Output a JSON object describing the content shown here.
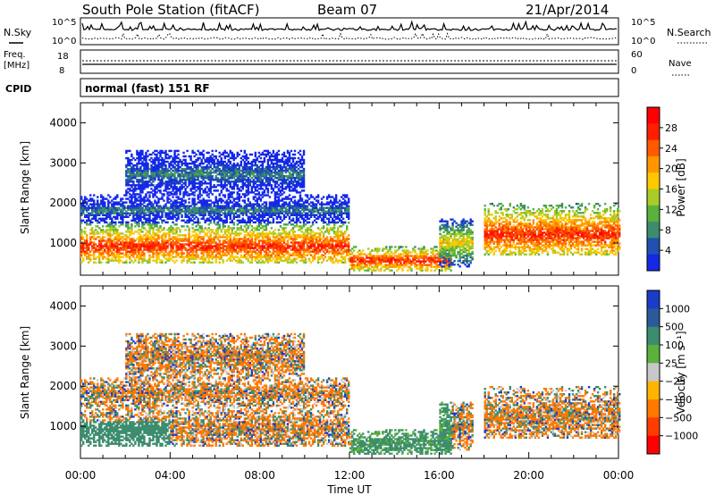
{
  "header": {
    "station": "South Pole Station (fitACF)",
    "beam": "Beam 07",
    "date": "21/Apr/2014"
  },
  "top_panels": {
    "nsky_label": "N.Sky",
    "nsearch_label": "N.Search",
    "pow_high": "10^5",
    "pow_low": "10^0",
    "freq_label_1": "Freq.",
    "freq_label_2": "[MHz]",
    "freq_high": "18",
    "freq_low": "8",
    "nave_label": "Nave",
    "nave_high": "60",
    "nave_low": "0",
    "cpid_label": "CPID",
    "cpid_text": "normal (fast) 151 RF"
  },
  "chart_data": [
    {
      "type": "heatmap",
      "name": "power",
      "ylabel": "Slant Range [km]",
      "xlabel": "Time UT",
      "x_range_hours": [
        0,
        24
      ],
      "ylim": [
        200,
        4500
      ],
      "y_ticks": [
        1000,
        2000,
        3000,
        4000
      ],
      "x_ticks": [
        "00:00",
        "04:00",
        "08:00",
        "12:00",
        "16:00",
        "20:00",
        "00:00"
      ],
      "colorbar": {
        "label": "Power [dB]",
        "ticks": [
          "4",
          "8",
          "12",
          "16",
          "20",
          "24",
          "28"
        ],
        "colors": [
          "#1428e6",
          "#2050b0",
          "#3c8c6e",
          "#5ab23c",
          "#a8cc28",
          "#ffc800",
          "#ff9600",
          "#ff5a00",
          "#ff1e00",
          "#ff0000"
        ]
      },
      "scatter_regions": [
        {
          "t_start": 0.0,
          "t_end": 12.0,
          "range_low": 500,
          "range_high": 1500,
          "core": 900,
          "level": "high"
        },
        {
          "t_start": 0.0,
          "t_end": 12.0,
          "range_low": 1500,
          "range_high": 2200,
          "core": 1800,
          "level": "low"
        },
        {
          "t_start": 2.0,
          "t_end": 10.0,
          "range_low": 2200,
          "range_high": 3300,
          "core": 2700,
          "level": "low"
        },
        {
          "t_start": 12.0,
          "t_end": 16.5,
          "range_low": 300,
          "range_high": 900,
          "core": 550,
          "level": "high"
        },
        {
          "t_start": 16.0,
          "t_end": 17.5,
          "range_low": 400,
          "range_high": 1600,
          "core": 1000,
          "level": "mid"
        },
        {
          "t_start": 18.0,
          "t_end": 24.0,
          "range_low": 700,
          "range_high": 2000,
          "core": 1200,
          "level": "high"
        }
      ]
    },
    {
      "type": "heatmap",
      "name": "velocity",
      "ylabel": "Slant Range [km]",
      "xlabel": "Time UT",
      "x_range_hours": [
        0,
        24
      ],
      "ylim": [
        200,
        4500
      ],
      "y_ticks": [
        1000,
        2000,
        3000,
        4000
      ],
      "x_ticks": [
        "00:00",
        "04:00",
        "08:00",
        "12:00",
        "16:00",
        "20:00",
        "00:00"
      ],
      "colorbar": {
        "label": "Velocity [m s⁻¹]",
        "ticks": [
          "1000",
          "500",
          "100",
          "25",
          "−25",
          "−100",
          "−500",
          "−1000"
        ],
        "colors": [
          "#1a3cc8",
          "#2a5a9a",
          "#3c8c6e",
          "#5ab23c",
          "#c8c8c8",
          "#ffb400",
          "#ff7800",
          "#ff3c00",
          "#ff0000"
        ]
      }
    }
  ]
}
